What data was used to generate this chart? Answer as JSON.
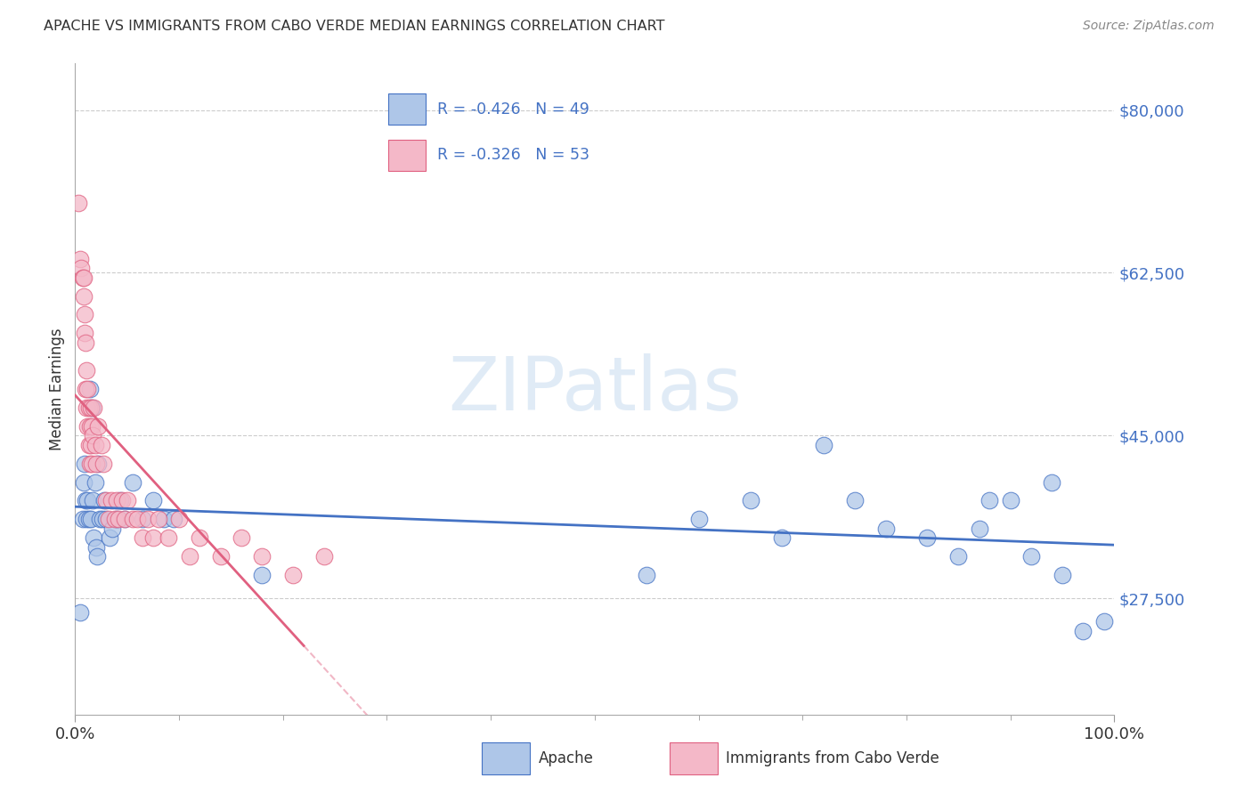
{
  "title": "APACHE VS IMMIGRANTS FROM CABO VERDE MEDIAN EARNINGS CORRELATION CHART",
  "source": "Source: ZipAtlas.com",
  "ylabel": "Median Earnings",
  "yticks": [
    27500,
    45000,
    62500,
    80000
  ],
  "ytick_labels": [
    "$27,500",
    "$45,000",
    "$62,500",
    "$80,000"
  ],
  "ylim": [
    15000,
    85000
  ],
  "xlim": [
    0.0,
    1.0
  ],
  "watermark": "ZIPatlas",
  "legend_blue_r": "R = -0.426",
  "legend_blue_n": "N = 49",
  "legend_pink_r": "R = -0.326",
  "legend_pink_n": "N = 53",
  "legend_label_blue": "Apache",
  "legend_label_pink": "Immigrants from Cabo Verde",
  "blue_fill": "#aec6e8",
  "pink_fill": "#f4b8c8",
  "line_blue": "#4472c4",
  "line_pink": "#e06080",
  "apache_x": [
    0.005,
    0.007,
    0.008,
    0.009,
    0.01,
    0.011,
    0.012,
    0.013,
    0.014,
    0.015,
    0.016,
    0.017,
    0.018,
    0.019,
    0.02,
    0.021,
    0.022,
    0.024,
    0.026,
    0.028,
    0.03,
    0.033,
    0.036,
    0.04,
    0.043,
    0.048,
    0.055,
    0.065,
    0.075,
    0.085,
    0.095,
    0.18,
    0.55,
    0.6,
    0.65,
    0.68,
    0.72,
    0.75,
    0.78,
    0.82,
    0.85,
    0.87,
    0.88,
    0.9,
    0.92,
    0.94,
    0.95,
    0.97,
    0.99
  ],
  "apache_y": [
    26000,
    36000,
    40000,
    42000,
    38000,
    36000,
    38000,
    36000,
    50000,
    36000,
    48000,
    38000,
    34000,
    40000,
    33000,
    32000,
    42000,
    36000,
    36000,
    38000,
    36000,
    34000,
    35000,
    36000,
    38000,
    36000,
    40000,
    36000,
    38000,
    36000,
    36000,
    30000,
    30000,
    36000,
    38000,
    34000,
    44000,
    38000,
    35000,
    34000,
    32000,
    35000,
    38000,
    38000,
    32000,
    40000,
    30000,
    24000,
    25000
  ],
  "cabo_x": [
    0.003,
    0.005,
    0.006,
    0.007,
    0.008,
    0.008,
    0.009,
    0.009,
    0.01,
    0.01,
    0.011,
    0.011,
    0.012,
    0.012,
    0.013,
    0.013,
    0.014,
    0.014,
    0.015,
    0.015,
    0.016,
    0.016,
    0.017,
    0.018,
    0.019,
    0.02,
    0.022,
    0.025,
    0.027,
    0.03,
    0.032,
    0.035,
    0.038,
    0.04,
    0.042,
    0.045,
    0.048,
    0.05,
    0.055,
    0.06,
    0.065,
    0.07,
    0.075,
    0.08,
    0.09,
    0.1,
    0.11,
    0.12,
    0.14,
    0.16,
    0.18,
    0.21,
    0.24
  ],
  "cabo_y": [
    70000,
    64000,
    63000,
    62000,
    60000,
    62000,
    58000,
    56000,
    50000,
    55000,
    52000,
    48000,
    50000,
    46000,
    44000,
    48000,
    42000,
    46000,
    48000,
    44000,
    46000,
    42000,
    45000,
    48000,
    44000,
    42000,
    46000,
    44000,
    42000,
    38000,
    36000,
    38000,
    36000,
    38000,
    36000,
    38000,
    36000,
    38000,
    36000,
    36000,
    34000,
    36000,
    34000,
    36000,
    34000,
    36000,
    32000,
    34000,
    32000,
    34000,
    32000,
    30000,
    32000
  ]
}
